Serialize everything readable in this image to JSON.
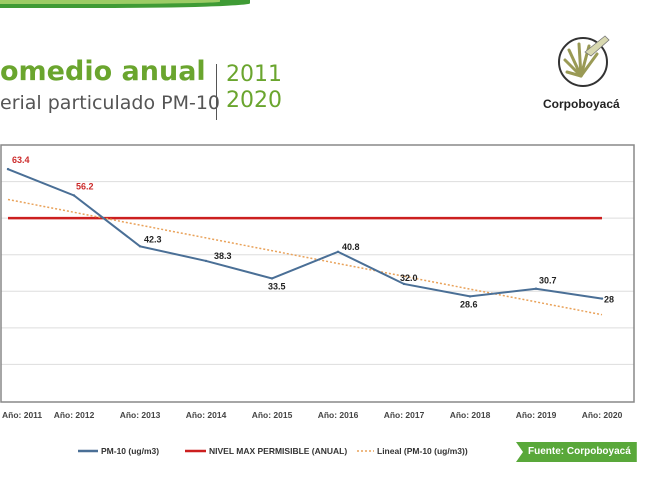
{
  "header": {
    "title": "omedio anual",
    "subtitle": "erial particulado PM-10",
    "year_start": "2011",
    "year_end": "2020"
  },
  "logo": {
    "text": "Corpoboyacá"
  },
  "source_badge": "Fuente: Corpoboyacá",
  "colors": {
    "pm10": "#4a6f96",
    "limit": "#cc1f1f",
    "trend": "#e9a25a",
    "green": "#6aa52e"
  },
  "chart_data": {
    "type": "line",
    "categories": [
      "Año: 2011",
      "Año: 2012",
      "Año: 2013",
      "Año: 2014",
      "Año: 2015",
      "Año: 2016",
      "Año: 2017",
      "Año: 2018",
      "Año: 2019",
      "Año: 2020"
    ],
    "series": [
      {
        "name": "PM-10 (ug/m3)",
        "values": [
          63.4,
          56.2,
          42.3,
          38.3,
          33.5,
          40.8,
          32.0,
          28.6,
          30.7,
          28
        ],
        "labels": [
          "63.4",
          "56.2",
          "42.3",
          "38.3",
          "33.5",
          "40.8",
          "32.0",
          "28.6",
          "30.7",
          "28"
        ]
      },
      {
        "name": "NIVEL MAX PERMISIBLE (ANUAL)",
        "values": [
          50,
          50,
          50,
          50,
          50,
          50,
          50,
          50,
          50,
          50
        ]
      },
      {
        "name": "Lineal (PM-10 (ug/m3))",
        "type": "trendline",
        "values": [
          55.1,
          51.6,
          48.1,
          44.6,
          41.1,
          37.6,
          34.1,
          30.6,
          27.1,
          23.6
        ]
      }
    ],
    "ylim": [
      0,
      70
    ],
    "grid": true,
    "legend": "bottom"
  }
}
